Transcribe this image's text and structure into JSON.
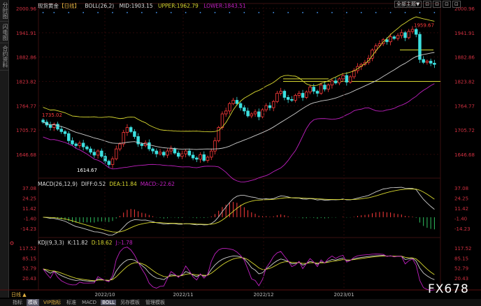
{
  "sidebar": {
    "tabs": [
      "分时图",
      "闪电图",
      "合约资料"
    ]
  },
  "main": {
    "title": "现货黄金",
    "period": "【日线】",
    "boll_label": "BOLL(26,2)",
    "mid": "MID:1903.15",
    "upper": "UPPER:1962.79",
    "lower": "LOWER:1843.51",
    "price_ticks": [
      "2000.96",
      "1941.91",
      "1882.86",
      "1823.82",
      "1764.77",
      "1705.72",
      "1646.68"
    ],
    "annotations": {
      "high_left": "1735.02",
      "low": "1614.67",
      "high_right": "1959.67"
    }
  },
  "top_buttons": {
    "theme": "全部主题▼",
    "b1": "⊡",
    "b2": "⊡",
    "b3": "⊡",
    "b4": "⊡"
  },
  "macd": {
    "label": "MACD(26,12,9)",
    "diff": "DIFF:0.52",
    "dea": "DEA:11.84",
    "macd": "MACD:-22.62",
    "ticks": [
      "37.08",
      "24.25",
      "11.42",
      "-1.40",
      "-14.23"
    ]
  },
  "kdj": {
    "label": "KDJ(9,3,3)",
    "k": "K:11.82",
    "d": "D:18.62",
    "j": "J:-1.78",
    "ticks": [
      "117.52",
      "85.15",
      "52.79",
      "20.43"
    ]
  },
  "xaxis": {
    "period": "日线 ▲",
    "labels": [
      "2022/10",
      "2022/11",
      "2022/12",
      "2023/01"
    ]
  },
  "bottom": {
    "items": [
      "指标",
      "模板",
      "VIP指标",
      "标准",
      "MACD",
      "BOLL",
      "另存模板",
      "管理模板"
    ]
  },
  "logo": "FX678",
  "colors": {
    "up": "#ff3b3b",
    "down": "#3ce0e0",
    "mid": "#cccccc",
    "upper": "#d8d830",
    "lower": "#c020c0",
    "bg": "#000000"
  },
  "chart_data": {
    "type": "candlestick",
    "ylim": [
      1600,
      2010
    ],
    "x_labels": [
      "2022/10",
      "2022/11",
      "2022/12",
      "2023/01"
    ],
    "closes": [
      1725,
      1718,
      1712,
      1720,
      1708,
      1702,
      1697,
      1680,
      1672,
      1668,
      1674,
      1665,
      1660,
      1652,
      1645,
      1655,
      1642,
      1630,
      1622,
      1636,
      1660,
      1672,
      1700,
      1712,
      1702,
      1690,
      1672,
      1668,
      1675,
      1660,
      1655,
      1648,
      1652,
      1645,
      1655,
      1660,
      1650,
      1642,
      1648,
      1655,
      1645,
      1638,
      1635,
      1646,
      1632,
      1640,
      1655,
      1680,
      1712,
      1745,
      1752,
      1770,
      1778,
      1770,
      1760,
      1752,
      1740,
      1745,
      1750,
      1738,
      1755,
      1765,
      1760,
      1775,
      1795,
      1800,
      1785,
      1780,
      1778,
      1790,
      1795,
      1785,
      1798,
      1810,
      1800,
      1795,
      1815,
      1805,
      1815,
      1825,
      1820,
      1830,
      1838,
      1822,
      1835,
      1850,
      1860,
      1865,
      1870,
      1880,
      1900,
      1910,
      1915,
      1925,
      1920,
      1932,
      1928,
      1935,
      1942,
      1930,
      1945,
      1950,
      1938,
      1877,
      1870,
      1873,
      1868,
      1865
    ]
  }
}
